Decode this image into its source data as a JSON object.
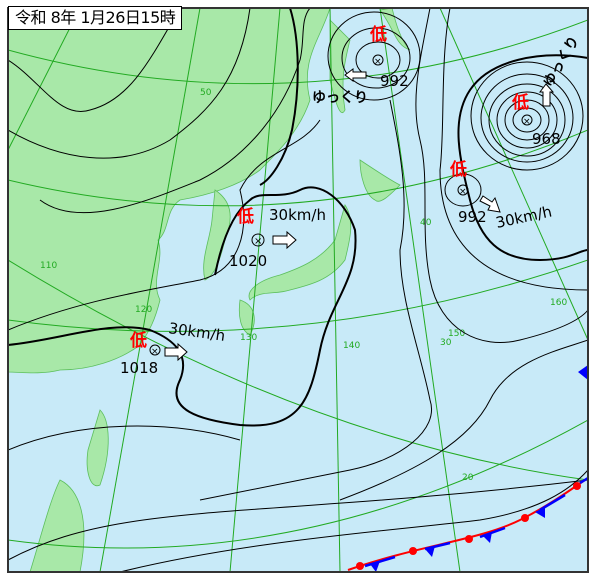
{
  "title": "令和 8年 1月26日15時",
  "colors": {
    "ocean": "#c8eaf8",
    "land": "#a8e8a8",
    "grid": "#22aa22",
    "isobar": "#000000",
    "low_label": "#ff0000",
    "warm_front": "#ff0000",
    "cold_front": "#0000ff"
  },
  "grid_labels": {
    "lat": [
      "50",
      "40",
      "30",
      "20"
    ],
    "lon": [
      "110",
      "120",
      "130",
      "140",
      "150",
      "160"
    ]
  },
  "pressure_systems": [
    {
      "type_label": "低",
      "pressure": "992",
      "motion": "ゆっくり",
      "direction": "west"
    },
    {
      "type_label": "低",
      "pressure": "968",
      "motion": "ゆっくり",
      "direction": "north"
    },
    {
      "type_label": "低",
      "pressure": "992",
      "motion": "30km/h",
      "direction": "southeast"
    },
    {
      "type_label": "低",
      "pressure": "1020",
      "motion": "30km/h",
      "direction": "east"
    },
    {
      "type_label": "低",
      "pressure": "1018",
      "motion": "30km/h",
      "direction": "east"
    }
  ],
  "fronts": [
    {
      "type": "stationary"
    }
  ]
}
